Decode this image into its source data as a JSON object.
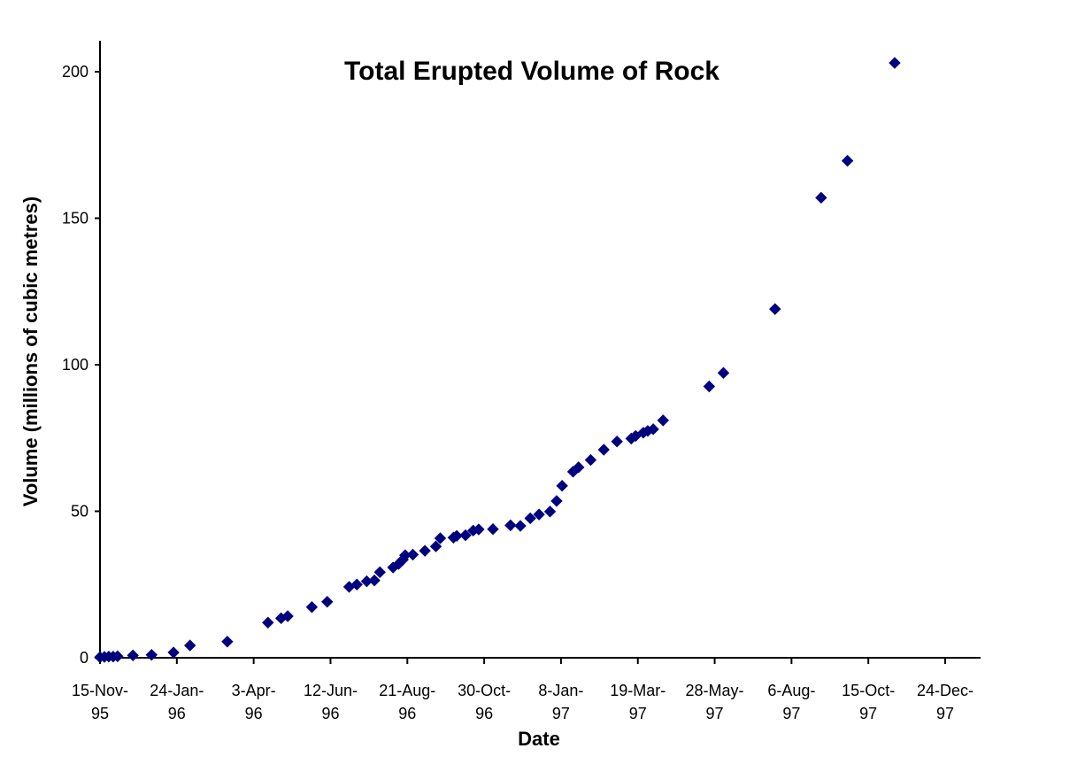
{
  "chart_data": {
    "type": "scatter",
    "title": "Total Erupted Volume of Rock",
    "xlabel": "Date",
    "ylabel": "Volume (millions of cubic metres)",
    "x_axis": {
      "type": "date",
      "range": [
        "1995-11-15",
        "1997-12-24"
      ],
      "ticks": [
        {
          "date": "1995-11-15",
          "label": [
            "15-Nov-",
            "95"
          ]
        },
        {
          "date": "1996-01-24",
          "label": [
            "24-Jan-",
            "96"
          ]
        },
        {
          "date": "1996-04-03",
          "label": [
            "3-Apr-",
            "96"
          ]
        },
        {
          "date": "1996-06-12",
          "label": [
            "12-Jun-",
            "96"
          ]
        },
        {
          "date": "1996-08-21",
          "label": [
            "21-Aug-",
            "96"
          ]
        },
        {
          "date": "1996-10-30",
          "label": [
            "30-Oct-",
            "96"
          ]
        },
        {
          "date": "1997-01-08",
          "label": [
            "8-Jan-",
            "97"
          ]
        },
        {
          "date": "1997-03-19",
          "label": [
            "19-Mar-",
            "97"
          ]
        },
        {
          "date": "1997-05-28",
          "label": [
            "28-May-",
            "97"
          ]
        },
        {
          "date": "1997-08-06",
          "label": [
            "6-Aug-",
            "97"
          ]
        },
        {
          "date": "1997-10-15",
          "label": [
            "15-Oct-",
            "97"
          ]
        },
        {
          "date": "1997-12-24",
          "label": [
            "24-Dec-",
            "97"
          ]
        }
      ]
    },
    "y_axis": {
      "range": [
        0,
        210
      ],
      "ticks": [
        0,
        50,
        100,
        150,
        200
      ]
    },
    "grid": false,
    "legend": "none",
    "marker_color": "#00007f",
    "series": [
      {
        "marker": "diamond",
        "points": [
          [
            "1995-11-15",
            0.2
          ],
          [
            "1995-11-19",
            0.3
          ],
          [
            "1995-11-23",
            0.4
          ],
          [
            "1995-11-27",
            0.4
          ],
          [
            "1995-12-01",
            0.5
          ],
          [
            "1995-12-15",
            0.8
          ],
          [
            "1996-01-01",
            1.0
          ],
          [
            "1996-01-21",
            1.8
          ],
          [
            "1996-02-05",
            4.2
          ],
          [
            "1996-03-10",
            5.5
          ],
          [
            "1996-04-16",
            12.0
          ],
          [
            "1996-04-28",
            13.5
          ],
          [
            "1996-05-04",
            14.2
          ],
          [
            "1996-05-26",
            17.3
          ],
          [
            "1996-06-09",
            19.1
          ],
          [
            "1996-06-29",
            24.2
          ],
          [
            "1996-07-06",
            25.0
          ],
          [
            "1996-07-15",
            26.1
          ],
          [
            "1996-07-22",
            26.4
          ],
          [
            "1996-07-27",
            29.2
          ],
          [
            "1996-08-08",
            30.8
          ],
          [
            "1996-08-13",
            32.0
          ],
          [
            "1996-08-17",
            33.5
          ],
          [
            "1996-08-19",
            35.0
          ],
          [
            "1996-08-26",
            35.2
          ],
          [
            "1996-09-06",
            36.5
          ],
          [
            "1996-09-16",
            38.0
          ],
          [
            "1996-09-20",
            40.8
          ],
          [
            "1996-10-02",
            41.0
          ],
          [
            "1996-10-05",
            41.6
          ],
          [
            "1996-10-13",
            41.8
          ],
          [
            "1996-10-20",
            43.4
          ],
          [
            "1996-10-25",
            43.8
          ],
          [
            "1996-11-07",
            43.9
          ],
          [
            "1996-11-23",
            45.2
          ],
          [
            "1996-12-02",
            45.0
          ],
          [
            "1996-12-11",
            47.6
          ],
          [
            "1996-12-19",
            48.9
          ],
          [
            "1996-12-29",
            49.9
          ],
          [
            "1997-01-04",
            53.5
          ],
          [
            "1997-01-09",
            58.7
          ],
          [
            "1997-01-19",
            63.5
          ],
          [
            "1997-01-24",
            65.0
          ],
          [
            "1997-02-04",
            67.5
          ],
          [
            "1997-02-16",
            71.0
          ],
          [
            "1997-02-28",
            73.8
          ],
          [
            "1997-03-13",
            74.8
          ],
          [
            "1997-03-17",
            75.7
          ],
          [
            "1997-03-24",
            76.8
          ],
          [
            "1997-03-28",
            77.4
          ],
          [
            "1997-04-02",
            78.0
          ],
          [
            "1997-04-11",
            81.0
          ],
          [
            "1997-05-23",
            92.6
          ],
          [
            "1997-06-05",
            97.2
          ],
          [
            "1997-07-22",
            119.0
          ],
          [
            "1997-09-02",
            157.0
          ],
          [
            "1997-09-26",
            169.6
          ],
          [
            "1997-11-08",
            203.0
          ]
        ]
      }
    ]
  }
}
